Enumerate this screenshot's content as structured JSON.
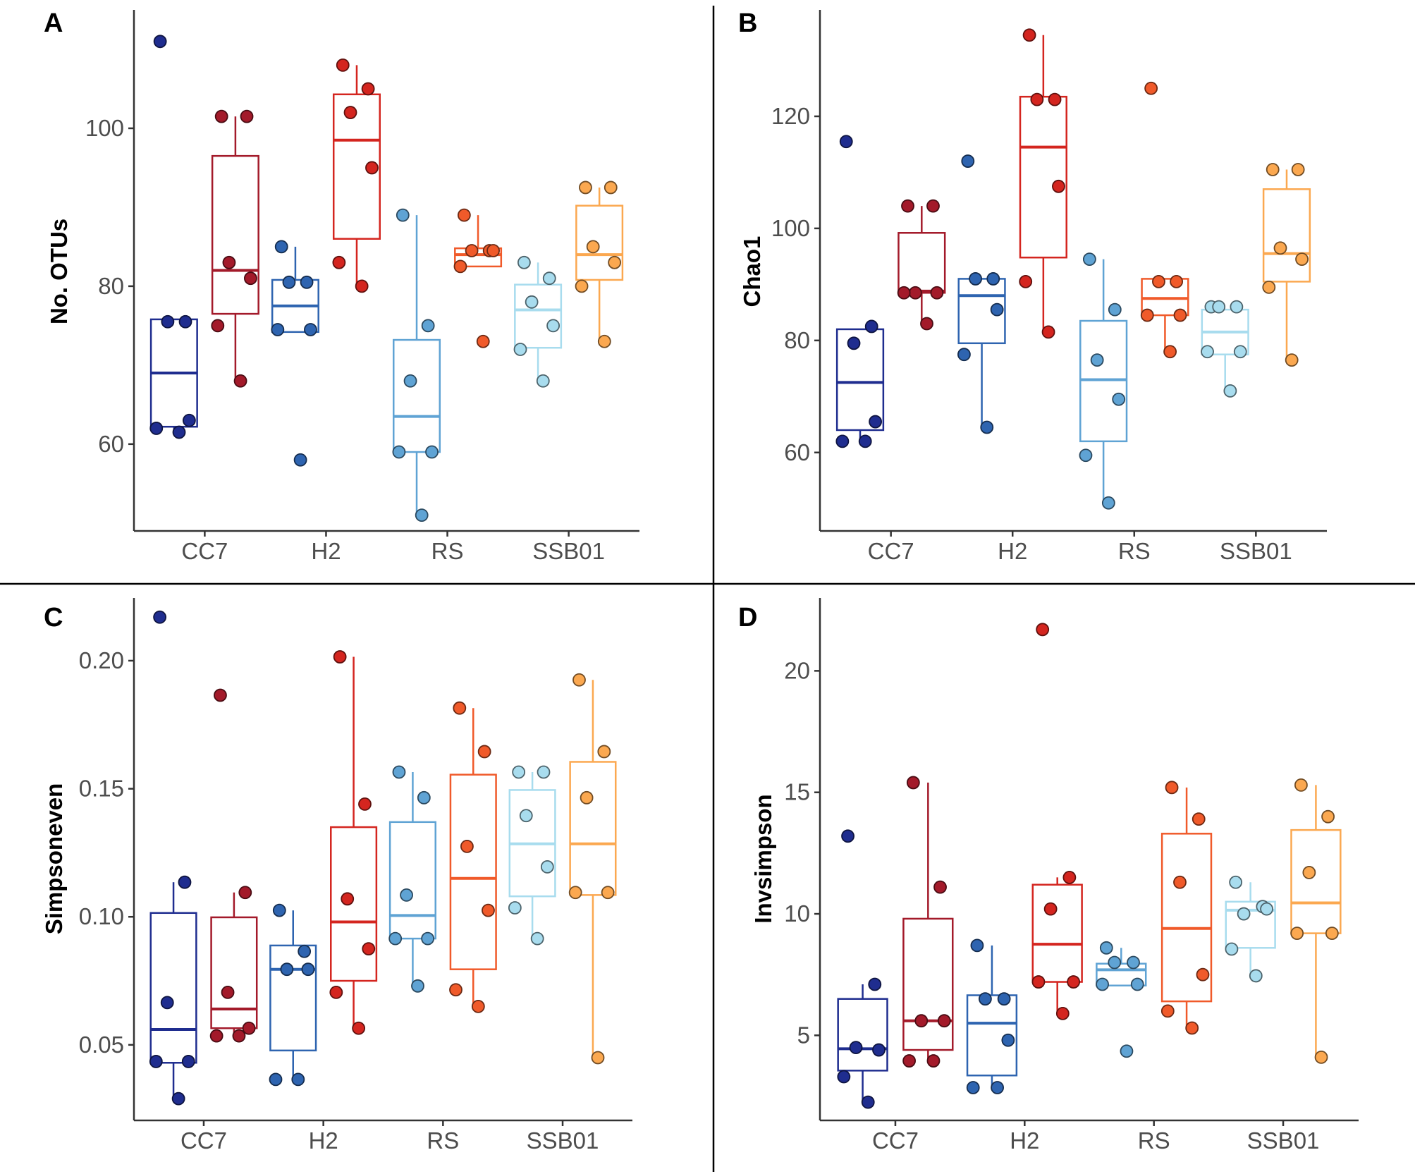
{
  "figure": "Alpha diversity boxplots (4 panels)",
  "colors": {
    "CC7_A": "#1f2d8f",
    "CC7_B": "#a31a2a",
    "H2_A": "#2e64b0",
    "H2_B": "#d4251f",
    "RS_A": "#5fa3d4",
    "RS_B": "#f05a2a",
    "SSB01_A": "#a8dcee",
    "SSB01_B": "#fba850"
  },
  "chart_data": [
    {
      "panel": "A",
      "type": "box",
      "ylabel": "No. OTUs",
      "categories": [
        "CC7",
        "H2",
        "RS",
        "SSB01"
      ],
      "ylim": [
        49,
        115
      ],
      "yticks": [
        60,
        80,
        100
      ],
      "ytick_labels": [
        "60",
        "80",
        "100"
      ],
      "groups": [
        {
          "category": "CC7",
          "series": "A",
          "color": "#1f2d8f",
          "q1": 62.2,
          "median": 69,
          "q3": 75.8,
          "lower": 61.5,
          "upper": 75.8,
          "points": [
            111,
            75.5,
            75.5,
            63,
            62,
            61.5
          ]
        },
        {
          "category": "CC7",
          "series": "B",
          "color": "#a31a2a",
          "q1": 76.5,
          "median": 82,
          "q3": 96.5,
          "lower": 68,
          "upper": 101.5,
          "points": [
            101.5,
            101.5,
            83,
            81,
            75,
            68
          ]
        },
        {
          "category": "H2",
          "series": "A",
          "color": "#2e64b0",
          "q1": 74.2,
          "median": 77.5,
          "q3": 80.8,
          "lower": 74.2,
          "upper": 85,
          "points": [
            85,
            80.5,
            80.5,
            74.5,
            74.5,
            58
          ]
        },
        {
          "category": "H2",
          "series": "B",
          "color": "#d4251f",
          "q1": 86,
          "median": 98.5,
          "q3": 104.3,
          "lower": 80,
          "upper": 108,
          "points": [
            108,
            105,
            102,
            95,
            83,
            80
          ]
        },
        {
          "category": "RS",
          "series": "A",
          "color": "#5fa3d4",
          "q1": 59,
          "median": 63.5,
          "q3": 73.2,
          "lower": 51,
          "upper": 89,
          "points": [
            89,
            75,
            68,
            59,
            59,
            51
          ]
        },
        {
          "category": "RS",
          "series": "B",
          "color": "#f05a2a",
          "q1": 82.5,
          "median": 84,
          "q3": 84.8,
          "lower": 82.5,
          "upper": 89,
          "points": [
            89,
            84.5,
            84.5,
            84.5,
            82.5,
            73
          ]
        },
        {
          "category": "SSB01",
          "series": "A",
          "color": "#a8dcee",
          "q1": 72.2,
          "median": 77,
          "q3": 80.2,
          "lower": 68,
          "upper": 83,
          "points": [
            83,
            81,
            78,
            75,
            72,
            68
          ]
        },
        {
          "category": "SSB01",
          "series": "B",
          "color": "#fba850",
          "q1": 80.8,
          "median": 84,
          "q3": 90.2,
          "lower": 73,
          "upper": 92.5,
          "points": [
            92.5,
            92.5,
            85,
            83,
            80,
            73
          ]
        }
      ]
    },
    {
      "panel": "B",
      "type": "box",
      "ylabel": "Chao1",
      "categories": [
        "CC7",
        "H2",
        "RS",
        "SSB01"
      ],
      "ylim": [
        46,
        139
      ],
      "yticks": [
        60,
        80,
        100,
        120
      ],
      "ytick_labels": [
        "60",
        "80",
        "100",
        "120"
      ],
      "groups": [
        {
          "category": "CC7",
          "series": "A",
          "color": "#1f2d8f",
          "q1": 64,
          "median": 72.5,
          "q3": 82,
          "lower": 62,
          "upper": 82,
          "points": [
            115.5,
            82.5,
            79.5,
            65.5,
            62,
            62
          ]
        },
        {
          "category": "CC7",
          "series": "B",
          "color": "#a31a2a",
          "q1": 88.5,
          "median": 88.8,
          "q3": 99.2,
          "lower": 83,
          "upper": 104,
          "points": [
            104,
            104,
            88.5,
            88.5,
            88.5,
            83
          ]
        },
        {
          "category": "H2",
          "series": "A",
          "color": "#2e64b0",
          "q1": 79.5,
          "median": 88,
          "q3": 91,
          "lower": 64.5,
          "upper": 91,
          "points": [
            112,
            91,
            91,
            85.5,
            77.5,
            64.5
          ]
        },
        {
          "category": "H2",
          "series": "B",
          "color": "#d4251f",
          "q1": 94.8,
          "median": 114.5,
          "q3": 123.5,
          "lower": 81.5,
          "upper": 134.5,
          "points": [
            134.5,
            123,
            123,
            107.5,
            90.5,
            81.5
          ]
        },
        {
          "category": "RS",
          "series": "A",
          "color": "#5fa3d4",
          "q1": 62,
          "median": 73,
          "q3": 83.5,
          "lower": 51,
          "upper": 94.5,
          "points": [
            94.5,
            85.5,
            76.5,
            69.5,
            59.5,
            51
          ]
        },
        {
          "category": "RS",
          "series": "B",
          "color": "#f05a2a",
          "q1": 84.5,
          "median": 87.5,
          "q3": 91,
          "lower": 78,
          "upper": 91,
          "points": [
            125,
            90.5,
            90.5,
            84.5,
            84.5,
            78
          ]
        },
        {
          "category": "SSB01",
          "series": "A",
          "color": "#a8dcee",
          "q1": 77.5,
          "median": 81.5,
          "q3": 85.5,
          "lower": 71,
          "upper": 85.5,
          "points": [
            86,
            86,
            86,
            78,
            78,
            71
          ]
        },
        {
          "category": "SSB01",
          "series": "B",
          "color": "#fba850",
          "q1": 90.5,
          "median": 95.5,
          "q3": 107,
          "lower": 76.5,
          "upper": 110.5,
          "points": [
            110.5,
            110.5,
            96.5,
            94.5,
            89.5,
            76.5
          ]
        }
      ]
    },
    {
      "panel": "C",
      "type": "box",
      "ylabel": "Simpsoneven",
      "categories": [
        "CC7",
        "H2",
        "RS",
        "SSB01"
      ],
      "ylim": [
        0.0205,
        0.2245
      ],
      "yticks": [
        0.05,
        0.1,
        0.15,
        0.2
      ],
      "ytick_labels": [
        "0.05",
        "0.10",
        "0.15",
        "0.20"
      ],
      "groups": [
        {
          "category": "CC7",
          "series": "A",
          "color": "#1f2d8f",
          "q1": 0.043,
          "median": 0.056,
          "q3": 0.1015,
          "lower": 0.029,
          "upper": 0.1135,
          "points": [
            0.217,
            0.1135,
            0.0665,
            0.0435,
            0.0435,
            0.029
          ]
        },
        {
          "category": "CC7",
          "series": "B",
          "color": "#a31a2a",
          "q1": 0.0565,
          "median": 0.064,
          "q3": 0.0998,
          "lower": 0.0535,
          "upper": 0.1095,
          "points": [
            0.1865,
            0.1095,
            0.0705,
            0.0565,
            0.0535,
            0.0535
          ]
        },
        {
          "category": "H2",
          "series": "A",
          "color": "#2e64b0",
          "q1": 0.0478,
          "median": 0.0795,
          "q3": 0.0888,
          "lower": 0.0365,
          "upper": 0.1025,
          "points": [
            0.1025,
            0.0865,
            0.0795,
            0.0795,
            0.0365,
            0.0365
          ]
        },
        {
          "category": "H2",
          "series": "B",
          "color": "#d4251f",
          "q1": 0.075,
          "median": 0.098,
          "q3": 0.135,
          "lower": 0.0565,
          "upper": 0.2015,
          "points": [
            0.2015,
            0.144,
            0.107,
            0.0875,
            0.0705,
            0.0565
          ]
        },
        {
          "category": "RS",
          "series": "A",
          "color": "#5fa3d4",
          "q1": 0.0915,
          "median": 0.1005,
          "q3": 0.137,
          "lower": 0.073,
          "upper": 0.1565,
          "points": [
            0.1565,
            0.1465,
            0.1085,
            0.0915,
            0.0915,
            0.073
          ]
        },
        {
          "category": "RS",
          "series": "B",
          "color": "#f05a2a",
          "q1": 0.0795,
          "median": 0.115,
          "q3": 0.1555,
          "lower": 0.065,
          "upper": 0.1815,
          "points": [
            0.1815,
            0.1645,
            0.1275,
            0.1025,
            0.0715,
            0.065
          ]
        },
        {
          "category": "SSB01",
          "series": "A",
          "color": "#a8dcee",
          "q1": 0.108,
          "median": 0.1285,
          "q3": 0.1495,
          "lower": 0.0915,
          "upper": 0.1565,
          "points": [
            0.1565,
            0.1565,
            0.1395,
            0.1195,
            0.1035,
            0.0915
          ]
        },
        {
          "category": "SSB01",
          "series": "B",
          "color": "#fba850",
          "q1": 0.1085,
          "median": 0.1285,
          "q3": 0.1605,
          "lower": 0.045,
          "upper": 0.1925,
          "points": [
            0.1925,
            0.1645,
            0.1465,
            0.1095,
            0.1095,
            0.045
          ]
        }
      ]
    },
    {
      "panel": "D",
      "type": "box",
      "ylabel": "Invsimpson",
      "categories": [
        "CC7",
        "H2",
        "RS",
        "SSB01"
      ],
      "ylim": [
        1.5,
        23
      ],
      "yticks": [
        5,
        10,
        15,
        20
      ],
      "ytick_labels": [
        "5",
        "10",
        "15",
        "20"
      ],
      "groups": [
        {
          "category": "CC7",
          "series": "A",
          "color": "#1f2d8f",
          "q1": 3.55,
          "median": 4.45,
          "q3": 6.5,
          "lower": 2.25,
          "upper": 7.1,
          "points": [
            13.2,
            7.1,
            4.5,
            4.4,
            3.3,
            2.25
          ]
        },
        {
          "category": "CC7",
          "series": "B",
          "color": "#a31a2a",
          "q1": 4.4,
          "median": 5.6,
          "q3": 9.8,
          "lower": 3.9,
          "upper": 15.4,
          "points": [
            15.4,
            11.1,
            5.6,
            5.6,
            3.95,
            3.95
          ]
        },
        {
          "category": "H2",
          "series": "A",
          "color": "#2e64b0",
          "q1": 3.35,
          "median": 5.5,
          "q3": 6.65,
          "lower": 2.85,
          "upper": 8.7,
          "points": [
            8.7,
            6.5,
            6.5,
            4.8,
            2.85,
            2.85
          ]
        },
        {
          "category": "H2",
          "series": "B",
          "color": "#d4251f",
          "q1": 7.2,
          "median": 8.75,
          "q3": 11.2,
          "lower": 5.9,
          "upper": 11.5,
          "points": [
            21.7,
            11.5,
            10.2,
            7.2,
            7.2,
            5.9
          ]
        },
        {
          "category": "RS",
          "series": "A",
          "color": "#5fa3d4",
          "q1": 7.05,
          "median": 7.7,
          "q3": 7.95,
          "lower": 7.05,
          "upper": 8.6,
          "points": [
            8.6,
            8.0,
            8.0,
            7.1,
            7.1,
            4.35
          ]
        },
        {
          "category": "RS",
          "series": "B",
          "color": "#f05a2a",
          "q1": 6.4,
          "median": 9.4,
          "q3": 13.3,
          "lower": 5.3,
          "upper": 15.2,
          "points": [
            15.2,
            13.9,
            11.3,
            7.5,
            6.0,
            5.3
          ]
        },
        {
          "category": "SSB01",
          "series": "A",
          "color": "#a8dcee",
          "q1": 8.6,
          "median": 10.15,
          "q3": 10.5,
          "lower": 7.45,
          "upper": 11.3,
          "points": [
            11.3,
            10.3,
            10.0,
            10.2,
            8.55,
            7.45
          ]
        },
        {
          "category": "SSB01",
          "series": "B",
          "color": "#fba850",
          "q1": 9.2,
          "median": 10.45,
          "q3": 13.45,
          "lower": 4.1,
          "upper": 15.3,
          "points": [
            15.3,
            14.0,
            11.7,
            9.2,
            9.2,
            4.1
          ]
        }
      ]
    }
  ]
}
